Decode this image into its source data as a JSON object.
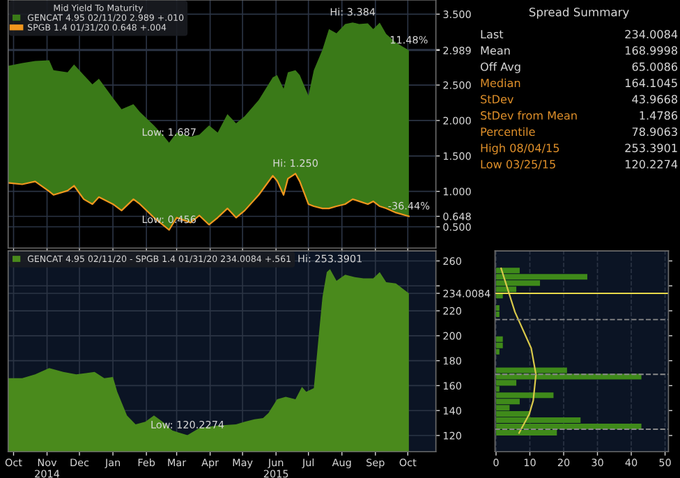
{
  "chart_data": [
    {
      "type": "area",
      "legend_title": "Mid Yield To Maturity",
      "legend": "top left",
      "grid": true,
      "tick_labels": "y",
      "xlim": [
        "2014-10-10",
        "2015-11-10"
      ],
      "xticks": [
        {
          "value": "2014-10-15",
          "label": null
        },
        {
          "value": "2014-11-15",
          "label": null
        },
        {
          "value": "2014-12-15",
          "label": null
        },
        {
          "value": "2015-01-15",
          "label": null
        },
        {
          "value": "2015-02-15",
          "label": null
        },
        {
          "value": "2015-03-15",
          "label": null
        },
        {
          "value": "2015-04-15",
          "label": null
        },
        {
          "value": "2015-05-15",
          "label": null
        },
        {
          "value": "2015-06-15",
          "label": null
        },
        {
          "value": "2015-07-15",
          "label": null
        },
        {
          "value": "2015-08-15",
          "label": null
        },
        {
          "value": "2015-09-15",
          "label": null
        },
        {
          "value": "2015-10-15",
          "label": null
        }
      ],
      "ylim": [
        0.2,
        3.7
      ],
      "yticks": [
        {
          "value": 0.5,
          "label": "0.500"
        },
        {
          "value": 0.648,
          "label": "0.648"
        },
        {
          "value": 1,
          "label": "1.000"
        },
        {
          "value": 1.5,
          "label": "1.500"
        },
        {
          "value": 2,
          "label": "2.000"
        },
        {
          "value": 2.5,
          "label": "2.500"
        },
        {
          "value": 2.989,
          "label": "2.989"
        },
        {
          "value": 3,
          "label": null
        },
        {
          "value": 3.5,
          "label": "3.500"
        }
      ],
      "x": [
        "2014-10-10",
        "2014-10-23",
        "2014-11-04",
        "2014-11-17",
        "2014-11-21",
        "2014-12-04",
        "2014-12-10",
        "2014-12-19",
        "2014-12-27",
        "2015-01-02",
        "2015-01-15",
        "2015-01-23",
        "2015-02-03",
        "2015-02-09",
        "2015-02-22",
        "2015-03-02",
        "2015-03-08",
        "2015-03-15",
        "2015-03-28",
        "2015-04-05",
        "2015-04-14",
        "2015-04-22",
        "2015-05-01",
        "2015-05-09",
        "2015-05-17",
        "2015-05-30",
        "2015-06-12",
        "2015-06-16",
        "2015-06-22",
        "2015-06-26",
        "2015-07-03",
        "2015-07-07",
        "2015-07-15",
        "2015-07-20",
        "2015-07-28",
        "2015-08-03",
        "2015-08-10",
        "2015-08-18",
        "2015-08-25",
        "2015-08-31",
        "2015-09-08",
        "2015-09-13",
        "2015-09-19",
        "2015-09-25",
        "2015-10-04",
        "2015-10-16"
      ],
      "series": [
        {
          "name": "GENCAT 4.95 02/11/20 2.989 +.010",
          "type": "area",
          "color": "#3a7a18",
          "values": [
            2.77,
            2.81,
            2.84,
            2.85,
            2.71,
            2.68,
            2.79,
            2.64,
            2.51,
            2.59,
            2.32,
            2.16,
            2.23,
            2.12,
            1.93,
            1.8,
            1.687,
            1.83,
            1.77,
            1.8,
            1.93,
            1.83,
            2.09,
            1.96,
            2.06,
            2.29,
            2.61,
            2.64,
            2.45,
            2.68,
            2.71,
            2.64,
            2.35,
            2.71,
            3.0,
            3.29,
            3.23,
            3.36,
            3.384,
            3.36,
            3.37,
            3.29,
            3.38,
            3.22,
            3.1,
            2.989
          ]
        },
        {
          "name": "SPGB 1.4 01/31/20 0.648 +.004",
          "type": "line",
          "color": "#f0961e",
          "values": [
            1.12,
            1.1,
            1.14,
            1.0,
            0.95,
            1.01,
            1.08,
            0.89,
            0.82,
            0.92,
            0.82,
            0.73,
            0.89,
            0.82,
            0.63,
            0.53,
            0.456,
            0.63,
            0.56,
            0.66,
            0.53,
            0.63,
            0.76,
            0.63,
            0.73,
            0.95,
            1.22,
            1.15,
            0.95,
            1.18,
            1.25,
            1.14,
            0.82,
            0.79,
            0.76,
            0.76,
            0.79,
            0.82,
            0.89,
            0.86,
            0.82,
            0.86,
            0.79,
            0.76,
            0.7,
            0.648
          ]
        }
      ],
      "annotations": [
        {
          "text": "Hi: 3.384",
          "x": "2015-08-25",
          "y": 3.384
        },
        {
          "text": "Low: 1.687",
          "x": "2015-03-08",
          "y": 1.687
        },
        {
          "text": "Hi: 1.250",
          "x": "2015-07-03",
          "y": 1.25
        },
        {
          "text": "Low: 0.456",
          "x": "2015-03-08",
          "y": 0.456
        },
        {
          "text": "11.48%",
          "x": "2015-10-16",
          "y": 2.989
        },
        {
          "text": "-36.44%",
          "x": "2015-10-16",
          "y": 0.648
        }
      ]
    },
    {
      "type": "other",
      "title": "Spread Summary",
      "annotations": [
        "Last",
        "234.0084",
        "Mean",
        "168.9998",
        "Off Avg",
        "65.0086",
        "Median",
        "164.1045",
        "StDev",
        "43.9668",
        "StDev from Mean",
        "1.4786",
        "Percentile",
        "78.9063",
        "High 08/04/15",
        "253.3901",
        "Low 03/25/15",
        "120.2274"
      ]
    },
    {
      "type": "area",
      "legend": "top left",
      "grid": true,
      "xlim": [
        "2014-10-10",
        "2015-11-10"
      ],
      "xticks": [
        {
          "value": "2014-10-15",
          "label": "Oct"
        },
        {
          "value": "2014-11-15",
          "label": "Nov\n2014"
        },
        {
          "value": "2014-12-15",
          "label": "Dec"
        },
        {
          "value": "2015-01-15",
          "label": "Jan"
        },
        {
          "value": "2015-02-15",
          "label": "Feb"
        },
        {
          "value": "2015-03-15",
          "label": "Mar"
        },
        {
          "value": "2015-04-15",
          "label": "Apr"
        },
        {
          "value": "2015-05-15",
          "label": "May"
        },
        {
          "value": "2015-06-15",
          "label": "Jun\n2015"
        },
        {
          "value": "2015-07-15",
          "label": "Jul"
        },
        {
          "value": "2015-08-15",
          "label": "Aug"
        },
        {
          "value": "2015-09-15",
          "label": "Sep"
        },
        {
          "value": "2015-10-15",
          "label": "Oct"
        }
      ],
      "ylim": [
        107,
        268
      ],
      "yticks": [
        120,
        140,
        160,
        180,
        200,
        220,
        {
          "value": 234.0084,
          "label": "234.0084"
        },
        {
          "value": 240,
          "label": null
        },
        260
      ],
      "x": [
        "2014-10-10",
        "2014-10-23",
        "2014-11-04",
        "2014-11-17",
        "2014-11-30",
        "2014-12-12",
        "2014-12-21",
        "2014-12-29",
        "2015-01-07",
        "2015-01-15",
        "2015-01-19",
        "2015-01-28",
        "2015-02-05",
        "2015-02-14",
        "2015-02-22",
        "2015-03-02",
        "2015-03-11",
        "2015-03-25",
        "2015-04-05",
        "2015-04-22",
        "2015-05-09",
        "2015-05-17",
        "2015-05-26",
        "2015-06-03",
        "2015-06-08",
        "2015-06-16",
        "2015-06-24",
        "2015-07-03",
        "2015-07-09",
        "2015-07-13",
        "2015-07-20",
        "2015-07-24",
        "2015-07-28",
        "2015-08-01",
        "2015-08-04",
        "2015-08-10",
        "2015-08-18",
        "2015-08-27",
        "2015-09-04",
        "2015-09-13",
        "2015-09-19",
        "2015-09-25",
        "2015-10-04",
        "2015-10-16"
      ],
      "series": [
        {
          "name": "GENCAT 4.95 02/11/20 - SPGB 1.4 01/31/20 234.0084 +.561",
          "color": "#4a8a1c",
          "values": [
            166,
            166,
            169,
            174,
            171,
            169,
            170,
            171,
            166,
            167,
            155,
            136,
            129,
            131,
            136,
            131,
            124,
            120.2274,
            126,
            128,
            129,
            131,
            133,
            134,
            138,
            149,
            151,
            149,
            159,
            155,
            158,
            195,
            231,
            251,
            253.3901,
            244,
            249,
            247,
            246,
            246,
            251,
            243,
            242,
            234.0084
          ]
        }
      ],
      "annotations": [
        {
          "text": "Hi: 253.3901",
          "x": "2015-08-04",
          "y": 253.3901
        },
        {
          "text": "Low: 120.2274",
          "x": "2015-03-25",
          "y": 120.2274
        }
      ]
    },
    {
      "type": "histogram",
      "orientation": "horizontal",
      "color": "#3f8a1a",
      "grid": "x",
      "tick_labels": "x",
      "bins": [
        120,
        125,
        130,
        135,
        140,
        145,
        150,
        155,
        160,
        165,
        170,
        175,
        180,
        185,
        190,
        195,
        200,
        205,
        210,
        215,
        220,
        225,
        230,
        235,
        240,
        245,
        250,
        255
      ],
      "values": [
        18,
        43,
        25,
        10,
        4,
        7,
        17,
        1,
        6,
        43,
        21,
        0,
        0,
        1,
        2,
        2,
        0,
        0,
        0,
        1,
        1,
        0,
        2,
        6,
        13,
        27,
        7
      ],
      "xlim": [
        -0.3,
        51
      ],
      "xticks": [
        0,
        10,
        20,
        30,
        40,
        50
      ],
      "ylim": [
        107,
        268
      ],
      "series": [
        {
          "type": "line",
          "color": "#d8c84a",
          "x": [
            122,
            137,
            148,
            169,
            190,
            219,
            254
          ],
          "values": [
            6.8,
            9.8,
            11,
            11.8,
            10.4,
            5.6,
            1.5
          ]
        }
      ],
      "ref_lines": [
        {
          "axis": "y",
          "value": 234.0084,
          "color": "#e8d84a"
        },
        {
          "axis": "y",
          "value": 125.033,
          "color": "#8a8a8a",
          "line_style": "dashed"
        },
        {
          "axis": "y",
          "value": 168.9998,
          "color": "#8a8a8a",
          "line_style": "dashed"
        },
        {
          "axis": "y",
          "value": 212.9666,
          "color": "#8a8a8a",
          "line_style": "dashed"
        }
      ]
    }
  ]
}
